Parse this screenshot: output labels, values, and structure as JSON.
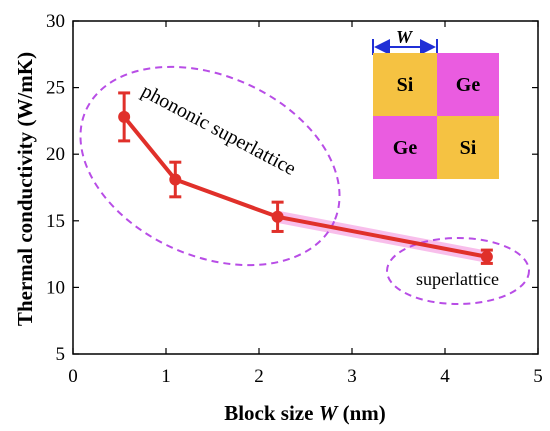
{
  "chart_data": {
    "type": "line",
    "xlabel_prefix": "Block size ",
    "xlabel_var": "W",
    "xlabel_suffix": " (nm)",
    "ylabel": "Thermal conductivity (W/mK)",
    "xlim": [
      0,
      5
    ],
    "ylim": [
      5,
      30
    ],
    "x_ticks": [
      "0",
      "1",
      "2",
      "3",
      "4",
      "5"
    ],
    "y_ticks": [
      "5",
      "10",
      "15",
      "20",
      "25",
      "30"
    ],
    "grid": false,
    "series": [
      {
        "x": [
          0.55,
          1.1,
          2.2,
          4.45
        ],
        "y": [
          22.8,
          18.1,
          15.3,
          12.3
        ],
        "err": [
          1.8,
          1.3,
          1.1,
          0.5
        ],
        "color": "#e0302a"
      }
    ],
    "annotations": [
      {
        "text": "phononic superlattice"
      },
      {
        "text": "superlattice"
      }
    ],
    "inset": {
      "width_label": "W",
      "cells": [
        {
          "label": "Si",
          "color": "#f5c242"
        },
        {
          "label": "Ge",
          "color": "#ea5ce0"
        },
        {
          "label": "Ge",
          "color": "#ea5ce0"
        },
        {
          "label": "Si",
          "color": "#f5c242"
        }
      ]
    },
    "colors": {
      "ellipse": "#b84de6",
      "arrow": "#1f2fd6",
      "highlight": "#f7b3e8"
    }
  }
}
